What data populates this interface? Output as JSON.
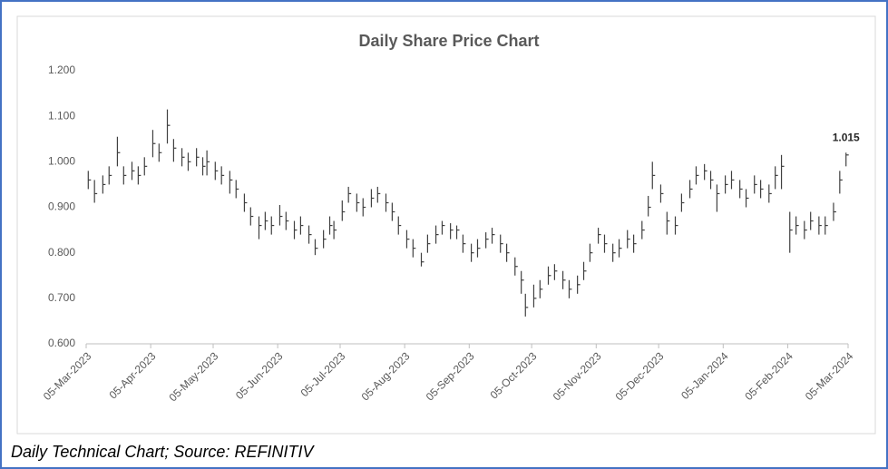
{
  "chart_data": {
    "type": "hlc",
    "title": "Daily Share Price Chart",
    "caption": "Daily Technical Chart; Source: REFINITIV",
    "last_label": "1.015",
    "color": "#404040",
    "grid": false,
    "x": [
      "2023-03-06",
      "2023-03-09",
      "2023-03-13",
      "2023-03-16",
      "2023-03-20",
      "2023-03-23",
      "2023-03-27",
      "2023-03-30",
      "2023-04-02",
      "2023-04-06",
      "2023-04-09",
      "2023-04-13",
      "2023-04-16",
      "2023-04-20",
      "2023-04-23",
      "2023-04-27",
      "2023-04-30",
      "2023-05-02",
      "2023-05-06",
      "2023-05-09",
      "2023-05-13",
      "2023-05-16",
      "2023-05-20",
      "2023-05-23",
      "2023-05-27",
      "2023-05-30",
      "2023-06-02",
      "2023-06-06",
      "2023-06-09",
      "2023-06-13",
      "2023-06-16",
      "2023-06-20",
      "2023-06-23",
      "2023-06-27",
      "2023-06-30",
      "2023-07-02",
      "2023-07-06",
      "2023-07-09",
      "2023-07-13",
      "2023-07-16",
      "2023-07-20",
      "2023-07-23",
      "2023-07-27",
      "2023-07-30",
      "2023-08-02",
      "2023-08-06",
      "2023-08-09",
      "2023-08-13",
      "2023-08-16",
      "2023-08-20",
      "2023-08-23",
      "2023-08-27",
      "2023-08-30",
      "2023-09-02",
      "2023-09-06",
      "2023-09-09",
      "2023-09-13",
      "2023-09-16",
      "2023-09-20",
      "2023-09-23",
      "2023-09-27",
      "2023-09-30",
      "2023-10-02",
      "2023-10-06",
      "2023-10-09",
      "2023-10-13",
      "2023-10-16",
      "2023-10-20",
      "2023-10-23",
      "2023-10-27",
      "2023-10-30",
      "2023-11-02",
      "2023-11-06",
      "2023-11-09",
      "2023-11-13",
      "2023-11-16",
      "2023-11-20",
      "2023-11-23",
      "2023-11-27",
      "2023-11-30",
      "2023-12-02",
      "2023-12-06",
      "2023-12-09",
      "2023-12-13",
      "2023-12-16",
      "2023-12-20",
      "2023-12-23",
      "2023-12-27",
      "2023-12-30",
      "2024-01-02",
      "2024-01-06",
      "2024-01-09",
      "2024-01-13",
      "2024-01-16",
      "2024-01-20",
      "2024-01-23",
      "2024-01-27",
      "2024-01-30",
      "2024-02-02",
      "2024-02-06",
      "2024-02-09",
      "2024-02-13",
      "2024-02-16",
      "2024-02-20",
      "2024-02-23",
      "2024-02-27",
      "2024-03-01",
      "2024-03-04"
    ],
    "high": [
      0.98,
      0.96,
      0.97,
      0.99,
      1.055,
      0.99,
      1.0,
      0.99,
      1.01,
      1.07,
      1.04,
      1.115,
      1.05,
      1.03,
      1.02,
      1.03,
      1.01,
      1.025,
      1.0,
      0.99,
      0.98,
      0.96,
      0.93,
      0.9,
      0.88,
      0.89,
      0.88,
      0.905,
      0.89,
      0.87,
      0.88,
      0.86,
      0.83,
      0.85,
      0.88,
      0.87,
      0.915,
      0.945,
      0.93,
      0.92,
      0.94,
      0.945,
      0.93,
      0.91,
      0.88,
      0.85,
      0.83,
      0.8,
      0.84,
      0.86,
      0.87,
      0.865,
      0.86,
      0.84,
      0.82,
      0.83,
      0.845,
      0.855,
      0.84,
      0.82,
      0.79,
      0.76,
      0.71,
      0.73,
      0.74,
      0.77,
      0.775,
      0.76,
      0.74,
      0.75,
      0.78,
      0.82,
      0.855,
      0.84,
      0.82,
      0.83,
      0.85,
      0.84,
      0.87,
      0.925,
      1.0,
      0.95,
      0.89,
      0.88,
      0.93,
      0.96,
      0.99,
      0.995,
      0.98,
      0.95,
      0.97,
      0.98,
      0.96,
      0.94,
      0.97,
      0.96,
      0.95,
      0.99,
      1.015,
      0.89,
      0.88,
      0.87,
      0.89,
      0.88,
      0.88,
      0.91,
      0.98,
      1.02
    ],
    "low": [
      0.94,
      0.91,
      0.93,
      0.95,
      0.99,
      0.95,
      0.96,
      0.95,
      0.97,
      1.01,
      1.0,
      1.04,
      1.0,
      0.99,
      0.98,
      0.99,
      0.97,
      0.97,
      0.96,
      0.95,
      0.93,
      0.92,
      0.89,
      0.86,
      0.83,
      0.85,
      0.84,
      0.86,
      0.85,
      0.83,
      0.84,
      0.82,
      0.795,
      0.81,
      0.84,
      0.83,
      0.87,
      0.91,
      0.89,
      0.88,
      0.9,
      0.91,
      0.89,
      0.87,
      0.84,
      0.81,
      0.79,
      0.77,
      0.8,
      0.82,
      0.84,
      0.83,
      0.83,
      0.8,
      0.78,
      0.79,
      0.81,
      0.82,
      0.8,
      0.78,
      0.75,
      0.71,
      0.66,
      0.68,
      0.7,
      0.73,
      0.74,
      0.72,
      0.7,
      0.71,
      0.74,
      0.78,
      0.82,
      0.8,
      0.78,
      0.79,
      0.81,
      0.8,
      0.83,
      0.88,
      0.94,
      0.91,
      0.84,
      0.84,
      0.89,
      0.92,
      0.95,
      0.96,
      0.94,
      0.89,
      0.93,
      0.94,
      0.92,
      0.9,
      0.93,
      0.92,
      0.91,
      0.94,
      0.94,
      0.8,
      0.84,
      0.83,
      0.85,
      0.84,
      0.84,
      0.87,
      0.93,
      0.99
    ],
    "close": [
      0.96,
      0.93,
      0.95,
      0.97,
      1.02,
      0.97,
      0.98,
      0.97,
      0.99,
      1.04,
      1.02,
      1.08,
      1.03,
      1.01,
      1.0,
      1.01,
      0.99,
      1.0,
      0.98,
      0.97,
      0.96,
      0.94,
      0.91,
      0.88,
      0.86,
      0.87,
      0.86,
      0.88,
      0.87,
      0.85,
      0.86,
      0.84,
      0.81,
      0.83,
      0.86,
      0.85,
      0.89,
      0.93,
      0.91,
      0.9,
      0.92,
      0.93,
      0.91,
      0.89,
      0.86,
      0.83,
      0.81,
      0.78,
      0.82,
      0.84,
      0.86,
      0.85,
      0.85,
      0.82,
      0.8,
      0.81,
      0.83,
      0.84,
      0.82,
      0.8,
      0.77,
      0.74,
      0.68,
      0.7,
      0.72,
      0.75,
      0.76,
      0.74,
      0.72,
      0.73,
      0.76,
      0.8,
      0.84,
      0.82,
      0.8,
      0.81,
      0.83,
      0.82,
      0.85,
      0.9,
      0.97,
      0.93,
      0.87,
      0.86,
      0.91,
      0.94,
      0.97,
      0.98,
      0.96,
      0.93,
      0.95,
      0.96,
      0.94,
      0.92,
      0.95,
      0.94,
      0.93,
      0.97,
      0.99,
      0.85,
      0.86,
      0.85,
      0.87,
      0.86,
      0.86,
      0.89,
      0.96,
      1.015
    ],
    "xlim": [
      "2023-03-05",
      "2024-03-05"
    ],
    "xticks": [
      {
        "value": "2023-03-05",
        "label": "05-Mar-2023"
      },
      {
        "value": "2023-04-05",
        "label": "05-Apr-2023"
      },
      {
        "value": "2023-05-05",
        "label": "05-May-2023"
      },
      {
        "value": "2023-06-05",
        "label": "05-Jun-2023"
      },
      {
        "value": "2023-07-05",
        "label": "05-Jul-2023"
      },
      {
        "value": "2023-08-05",
        "label": "05-Aug-2023"
      },
      {
        "value": "2023-09-05",
        "label": "05-Sep-2023"
      },
      {
        "value": "2023-10-05",
        "label": "05-Oct-2023"
      },
      {
        "value": "2023-11-05",
        "label": "05-Nov-2023"
      },
      {
        "value": "2023-12-05",
        "label": "05-Dec-2023"
      },
      {
        "value": "2024-01-05",
        "label": "05-Jan-2024"
      },
      {
        "value": "2024-02-05",
        "label": "05-Feb-2024"
      },
      {
        "value": "2024-03-05",
        "label": "05-Mar-2024"
      }
    ],
    "ylim": [
      0.6,
      1.2
    ],
    "yticks": [
      {
        "value": 0.6,
        "label": "0.600"
      },
      {
        "value": 0.7,
        "label": "0.700"
      },
      {
        "value": 0.8,
        "label": "0.800"
      },
      {
        "value": 0.9,
        "label": "0.900"
      },
      {
        "value": 1.0,
        "label": "1.000"
      },
      {
        "value": 1.1,
        "label": "1.100"
      },
      {
        "value": 1.2,
        "label": "1.200"
      }
    ]
  }
}
